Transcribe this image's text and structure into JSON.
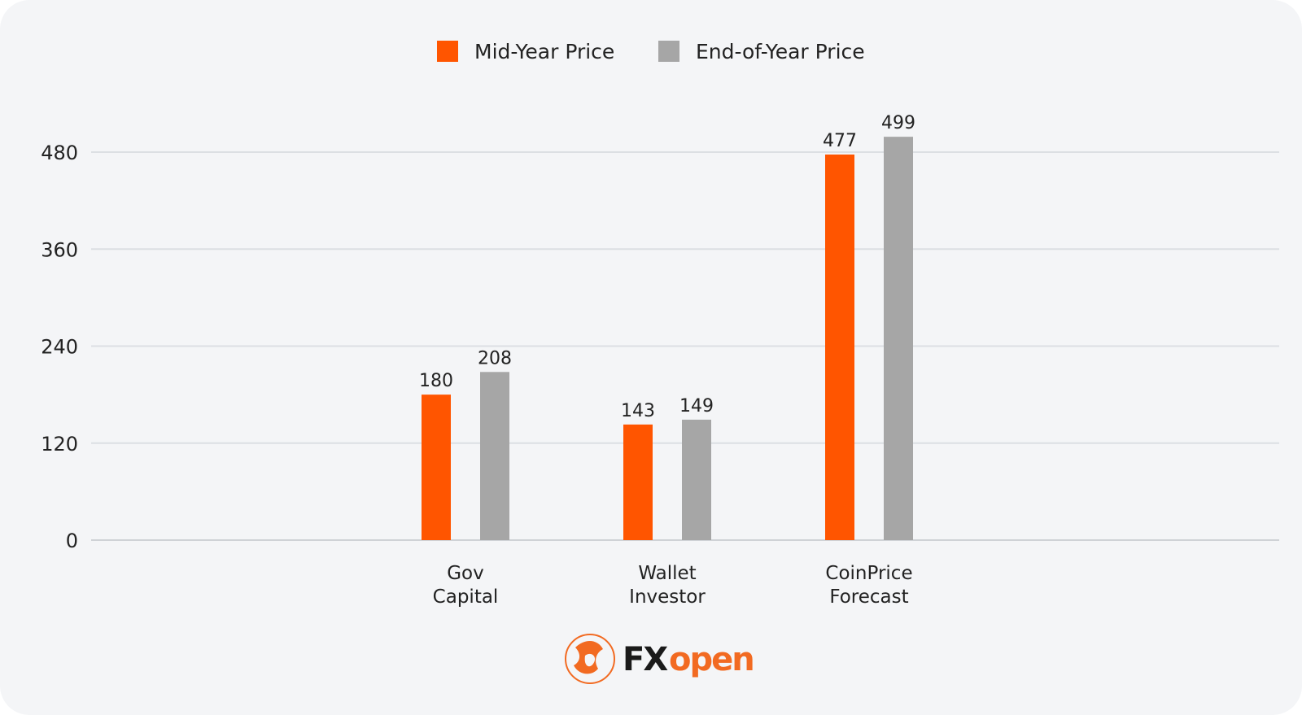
{
  "chart_data": {
    "type": "bar",
    "categories": [
      [
        "Gov",
        "Capital"
      ],
      [
        "Wallet",
        "Investor"
      ],
      [
        "CoinPrice",
        "Forecast"
      ]
    ],
    "series": [
      {
        "name": "Mid-Year Price",
        "color": "#ff5500",
        "values": [
          180,
          143,
          477
        ]
      },
      {
        "name": "End-of-Year Price",
        "color": "#a6a6a6",
        "values": [
          208,
          149,
          499
        ]
      }
    ],
    "yticks": [
      0,
      120,
      240,
      360,
      480
    ],
    "ylim": [
      0,
      480
    ],
    "grid": true,
    "legend": "top-center"
  },
  "logo": {
    "text": "FXopen",
    "part1": "FX",
    "part2": "open",
    "colors": {
      "orange": "#f26a21",
      "dark": "#1a1a1a"
    }
  }
}
